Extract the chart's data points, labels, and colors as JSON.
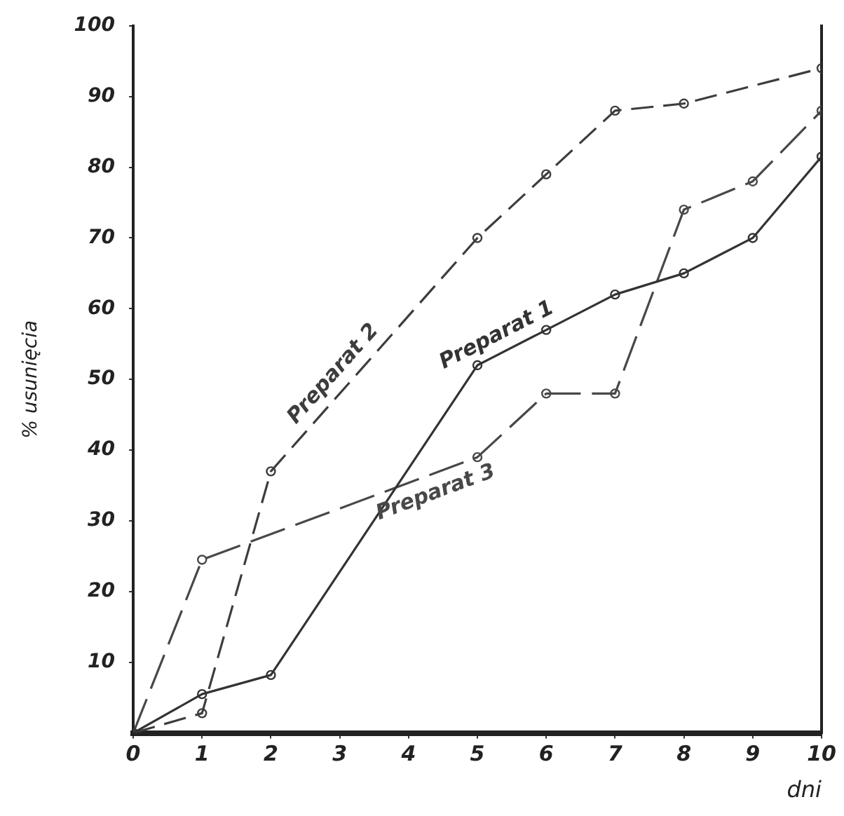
{
  "chart_data": {
    "type": "line",
    "xlabel": "dni",
    "ylabel": "% usunięcia",
    "x": [
      0,
      1,
      2,
      3,
      4,
      5,
      6,
      7,
      8,
      9,
      10
    ],
    "xlim": [
      0,
      10
    ],
    "xticks": [
      0,
      1,
      2,
      3,
      4,
      5,
      6,
      7,
      8,
      9,
      10
    ],
    "ylim": [
      0,
      100
    ],
    "yticks": [
      10,
      20,
      30,
      40,
      50,
      60,
      70,
      80,
      90,
      100
    ],
    "grid": false,
    "legend": false,
    "marker": "circle",
    "series": [
      {
        "name": "Preparat 1",
        "color": "#333333",
        "line_style": "solid",
        "values": [
          0,
          5.5,
          8.2,
          null,
          null,
          52,
          57,
          62,
          65,
          70,
          81.5
        ]
      },
      {
        "name": "Preparat 2",
        "color": "#3d3d3d",
        "line_style": "dashed",
        "values": [
          0,
          2.8,
          37,
          null,
          null,
          70,
          79,
          88,
          89,
          null,
          94
        ]
      },
      {
        "name": "Preparat 3",
        "color": "#484848",
        "line_style": "dotted",
        "values": [
          0,
          24.5,
          null,
          null,
          null,
          39,
          48,
          48,
          74,
          78,
          88
        ]
      }
    ]
  }
}
